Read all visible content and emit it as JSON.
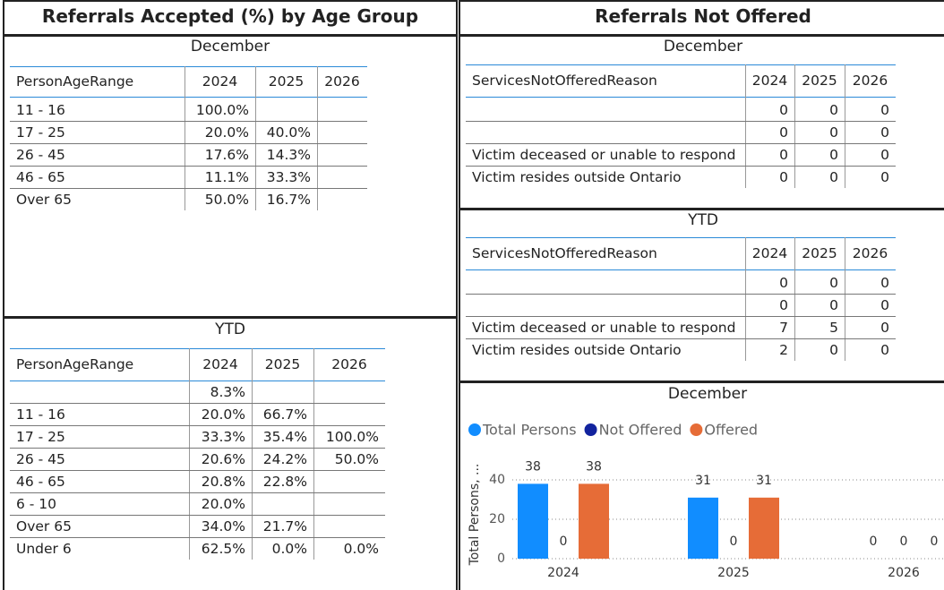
{
  "left": {
    "title": "Referrals Accepted (%) by Age Group",
    "december": {
      "title": "December",
      "columns": [
        "PersonAgeRange",
        "2024",
        "2025",
        "2026"
      ],
      "rows": [
        [
          "11 - 16",
          "100.0%",
          null,
          null
        ],
        [
          "17 - 25",
          "20.0%",
          "40.0%",
          null
        ],
        [
          "26 - 45",
          "17.6%",
          "14.3%",
          null
        ],
        [
          "46 - 65",
          "11.1%",
          "33.3%",
          null
        ],
        [
          "Over 65",
          "50.0%",
          "16.7%",
          null
        ]
      ]
    },
    "ytd": {
      "title": "YTD",
      "columns": [
        "PersonAgeRange",
        "2024",
        "2025",
        "2026"
      ],
      "rows": [
        [
          null,
          "8.3%",
          null,
          null
        ],
        [
          "11 - 16",
          "20.0%",
          "66.7%",
          null
        ],
        [
          "17 - 25",
          "33.3%",
          "35.4%",
          "100.0%"
        ],
        [
          "26 - 45",
          "20.6%",
          "24.2%",
          "50.0%"
        ],
        [
          "46 - 65",
          "20.8%",
          "22.8%",
          null
        ],
        [
          "6 - 10",
          "20.0%",
          null,
          null
        ],
        [
          "Over 65",
          "34.0%",
          "21.7%",
          null
        ],
        [
          "Under 6",
          "62.5%",
          "0.0%",
          "0.0%"
        ]
      ]
    }
  },
  "right": {
    "title": "Referrals Not Offered",
    "december": {
      "title": "December",
      "columns": [
        "ServicesNotOfferedReason",
        "2024",
        "2025",
        "2026"
      ],
      "rows": [
        [
          null,
          0,
          0,
          0
        ],
        [
          null,
          0,
          0,
          0
        ],
        [
          "Victim deceased or unable to respond",
          0,
          0,
          0
        ],
        [
          "Victim resides outside Ontario",
          0,
          0,
          0
        ]
      ]
    },
    "ytd": {
      "title": "YTD",
      "columns": [
        "ServicesNotOfferedReason",
        "2024",
        "2025",
        "2026"
      ],
      "rows": [
        [
          null,
          0,
          0,
          0
        ],
        [
          null,
          0,
          0,
          0
        ],
        [
          "Victim deceased or unable to respond",
          7,
          5,
          0
        ],
        [
          "Victim resides outside Ontario",
          2,
          0,
          0
        ]
      ]
    }
  },
  "chart_data": {
    "type": "bar",
    "title": "December",
    "categories": [
      "2024",
      "2025",
      "2026"
    ],
    "series": [
      {
        "name": "Total Persons",
        "color": "#118DFF",
        "values": [
          38,
          31,
          0
        ]
      },
      {
        "name": "Not Offered",
        "color": "#12239E",
        "values": [
          0,
          0,
          0
        ]
      },
      {
        "name": "Offered",
        "color": "#E66C37",
        "values": [
          38,
          31,
          0
        ]
      }
    ],
    "ylabel": "Total Persons, ...",
    "ylim": [
      0,
      45
    ],
    "yticks": [
      0,
      20,
      40
    ],
    "grid": true,
    "legend": "top-left"
  }
}
